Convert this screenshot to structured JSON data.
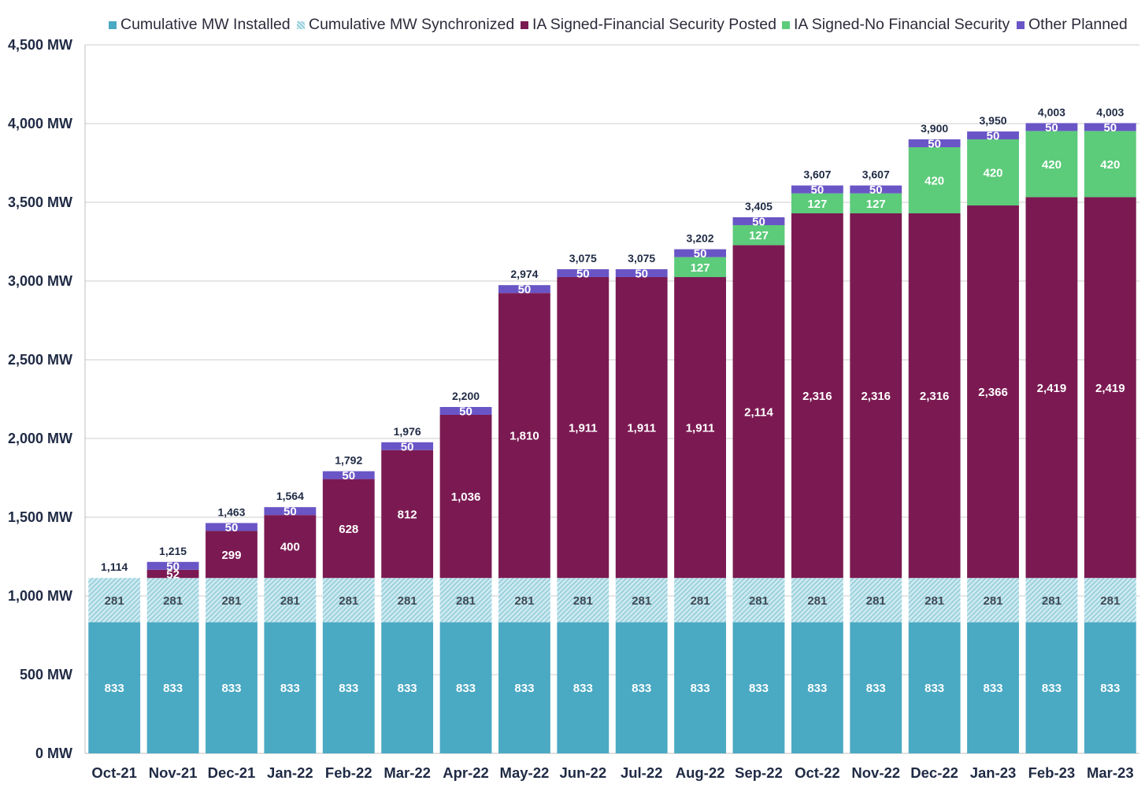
{
  "colors": {
    "installed": "#4aa9c3",
    "synchronized_fill": "#cde9ef",
    "synchronized_hatch": "#8ccbd9",
    "ia_fsp": "#7b1a52",
    "ia_nofs": "#5ccb7a",
    "other_planned": "#6a55c6",
    "grid": "#cccccc",
    "axis_text": "#1f2a44"
  },
  "chart_data": {
    "type": "bar",
    "stacked": true,
    "categories": [
      "Oct-21",
      "Nov-21",
      "Dec-21",
      "Jan-22",
      "Feb-22",
      "Mar-22",
      "Apr-22",
      "May-22",
      "Jun-22",
      "Jul-22",
      "Aug-22",
      "Sep-22",
      "Oct-22",
      "Nov-22",
      "Dec-22",
      "Jan-23",
      "Feb-23",
      "Mar-23"
    ],
    "series": [
      {
        "name": "Cumulative MW Installed",
        "key": "installed",
        "values": [
          833,
          833,
          833,
          833,
          833,
          833,
          833,
          833,
          833,
          833,
          833,
          833,
          833,
          833,
          833,
          833,
          833,
          833
        ]
      },
      {
        "name": "Cumulative MW Synchronized",
        "key": "synchronized",
        "values": [
          281,
          281,
          281,
          281,
          281,
          281,
          281,
          281,
          281,
          281,
          281,
          281,
          281,
          281,
          281,
          281,
          281,
          281
        ]
      },
      {
        "name": "IA Signed-Financial Security Posted",
        "key": "ia_fsp",
        "values": [
          0,
          52,
          299,
          400,
          628,
          812,
          1036,
          1810,
          1911,
          1911,
          1911,
          2114,
          2316,
          2316,
          2316,
          2366,
          2419,
          2419
        ]
      },
      {
        "name": "IA Signed-No Financial Security",
        "key": "ia_nofs",
        "values": [
          0,
          0,
          0,
          0,
          0,
          0,
          0,
          0,
          0,
          0,
          127,
          127,
          127,
          127,
          420,
          420,
          420,
          420
        ]
      },
      {
        "name": "Other Planned",
        "key": "other_planned",
        "values": [
          0,
          50,
          50,
          50,
          50,
          50,
          50,
          50,
          50,
          50,
          50,
          50,
          50,
          50,
          50,
          50,
          50,
          50
        ]
      }
    ],
    "totals": [
      "1,114",
      "1,215",
      "1,463",
      "1,564",
      "1,792",
      "1,976",
      "2,200",
      "2,974",
      "3,075",
      "3,075",
      "3,202",
      "3,405",
      "3,607",
      "3,607",
      "3,900",
      "3,950",
      "4,003",
      "4,003"
    ],
    "ylim": [
      0,
      4500
    ],
    "yticks": [
      {
        "value": 0,
        "label": "0  MW"
      },
      {
        "value": 500,
        "label": "500  MW"
      },
      {
        "value": 1000,
        "label": "1,000  MW"
      },
      {
        "value": 1500,
        "label": "1,500  MW"
      },
      {
        "value": 2000,
        "label": "2,000  MW"
      },
      {
        "value": 2500,
        "label": "2,500  MW"
      },
      {
        "value": 3000,
        "label": "3,000  MW"
      },
      {
        "value": 3500,
        "label": "3,500  MW"
      },
      {
        "value": 4000,
        "label": "4,000  MW"
      },
      {
        "value": 4500,
        "label": "4,500  MW"
      }
    ],
    "grid": true,
    "legend_position": "top"
  }
}
